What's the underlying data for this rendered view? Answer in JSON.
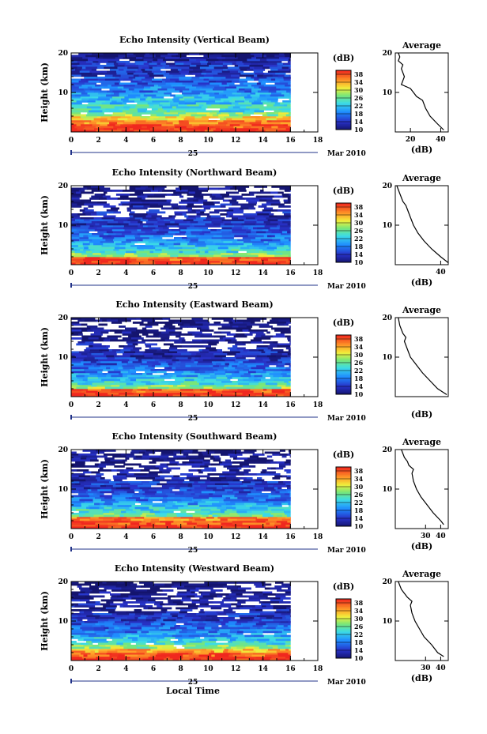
{
  "figure": {
    "shared_x_label": "Local Time",
    "date_prefix": "25",
    "date_suffix": "Mar 2010"
  },
  "chart_data": [
    {
      "type": "heatmap",
      "title": "Echo Intensity (Vertical Beam)",
      "ylabel": "Height (km)",
      "xlabel": "Local Time",
      "xlim": [
        0,
        18
      ],
      "ylim": [
        0,
        20
      ],
      "x_ticks": [
        0,
        2,
        4,
        6,
        8,
        10,
        12,
        14,
        16,
        18
      ],
      "y_ticks": [
        10,
        20
      ],
      "data_x_range": [
        0,
        16
      ],
      "colorbar": {
        "label": "(dB)",
        "ticks": [
          10,
          14,
          18,
          22,
          26,
          30,
          34,
          38
        ],
        "range": [
          10,
          40
        ]
      },
      "layers": [
        {
          "h0": 0,
          "h1": 1,
          "db": 40
        },
        {
          "h0": 1,
          "h1": 2,
          "db": 38
        },
        {
          "h0": 2,
          "h1": 3,
          "db": 36
        },
        {
          "h0": 3,
          "h1": 4,
          "db": 32
        },
        {
          "h0": 4,
          "h1": 5,
          "db": 28
        },
        {
          "h0": 5,
          "h1": 6,
          "db": 24
        },
        {
          "h0": 6,
          "h1": 7,
          "db": 24
        },
        {
          "h0": 7,
          "h1": 8,
          "db": 22
        },
        {
          "h0": 8,
          "h1": 9,
          "db": 22
        },
        {
          "h0": 9,
          "h1": 10,
          "db": 20
        },
        {
          "h0": 10,
          "h1": 12,
          "db": 18
        },
        {
          "h0": 12,
          "h1": 14,
          "db": 16
        },
        {
          "h0": 14,
          "h1": 16,
          "db": 14
        },
        {
          "h0": 16,
          "h1": 18,
          "db": 14
        },
        {
          "h0": 18,
          "h1": 19,
          "db": 12
        },
        {
          "h0": 19,
          "h1": 20,
          "db": 10
        }
      ],
      "profile": {
        "title": "Average",
        "xlabel": "(dB)",
        "x_ticks": [
          20,
          40
        ],
        "xlim": [
          10,
          45
        ],
        "y_ticks": [
          10,
          20
        ],
        "ylim": [
          0,
          20
        ],
        "points": [
          [
            42,
            0.5
          ],
          [
            38,
            2
          ],
          [
            33,
            4
          ],
          [
            30,
            6
          ],
          [
            28,
            8
          ],
          [
            24,
            9
          ],
          [
            22,
            10
          ],
          [
            20,
            11
          ],
          [
            14,
            12
          ],
          [
            16,
            14
          ],
          [
            14,
            16
          ],
          [
            15,
            17
          ],
          [
            12,
            18
          ],
          [
            13,
            19
          ],
          [
            12,
            20
          ]
        ]
      }
    },
    {
      "type": "heatmap",
      "title": "Echo Intensity (Northward Beam)",
      "ylabel": "Height (km)",
      "xlabel": "Local Time",
      "xlim": [
        0,
        18
      ],
      "ylim": [
        0,
        20
      ],
      "x_ticks": [
        0,
        2,
        4,
        6,
        8,
        10,
        12,
        14,
        16,
        18
      ],
      "y_ticks": [
        10,
        20
      ],
      "data_x_range": [
        0,
        16
      ],
      "colorbar": {
        "label": "(dB)",
        "ticks": [
          10,
          14,
          18,
          22,
          26,
          30,
          34,
          38
        ],
        "range": [
          10,
          40
        ]
      },
      "layers": [
        {
          "h0": 0,
          "h1": 1,
          "db": 40
        },
        {
          "h0": 1,
          "h1": 2,
          "db": 38
        },
        {
          "h0": 2,
          "h1": 3,
          "db": 28
        },
        {
          "h0": 3,
          "h1": 4,
          "db": 24
        },
        {
          "h0": 4,
          "h1": 5,
          "db": 22
        },
        {
          "h0": 5,
          "h1": 6,
          "db": 20
        },
        {
          "h0": 6,
          "h1": 7,
          "db": 18
        },
        {
          "h0": 7,
          "h1": 8,
          "db": 17
        },
        {
          "h0": 8,
          "h1": 9,
          "db": 16
        },
        {
          "h0": 9,
          "h1": 10,
          "db": 15
        },
        {
          "h0": 10,
          "h1": 12,
          "db": 14
        },
        {
          "h0": 12,
          "h1": 14,
          "db": 13
        },
        {
          "h0": 14,
          "h1": 16,
          "db": 12
        },
        {
          "h0": 16,
          "h1": 18,
          "db": 11
        },
        {
          "h0": 18,
          "h1": 19,
          "db": 11
        },
        {
          "h0": 19,
          "h1": 20,
          "db": 10
        }
      ],
      "profile": {
        "title": "Average",
        "xlabel": "(dB)",
        "x_ticks": [
          40
        ],
        "xlim": [
          10,
          45
        ],
        "y_ticks": [
          10,
          20
        ],
        "ylim": [
          0,
          20
        ],
        "points": [
          [
            45,
            0.5
          ],
          [
            40,
            2
          ],
          [
            34,
            4
          ],
          [
            29,
            6
          ],
          [
            25,
            8
          ],
          [
            22,
            10
          ],
          [
            20,
            12
          ],
          [
            18,
            14
          ],
          [
            17,
            15
          ],
          [
            15,
            16
          ],
          [
            13,
            18
          ],
          [
            12,
            19
          ],
          [
            11,
            20
          ]
        ]
      }
    },
    {
      "type": "heatmap",
      "title": "Echo Intensity (Eastward Beam)",
      "ylabel": "Height (km)",
      "xlabel": "Local Time",
      "xlim": [
        0,
        18
      ],
      "ylim": [
        0,
        20
      ],
      "x_ticks": [
        0,
        2,
        4,
        6,
        8,
        10,
        12,
        14,
        16,
        18
      ],
      "y_ticks": [
        10,
        20
      ],
      "data_x_range": [
        0,
        16
      ],
      "colorbar": {
        "label": "(dB)",
        "ticks": [
          10,
          14,
          18,
          22,
          26,
          30,
          34,
          38
        ],
        "range": [
          10,
          40
        ]
      },
      "layers": [
        {
          "h0": 0,
          "h1": 1,
          "db": 40
        },
        {
          "h0": 1,
          "h1": 2,
          "db": 38
        },
        {
          "h0": 2,
          "h1": 3,
          "db": 28
        },
        {
          "h0": 3,
          "h1": 4,
          "db": 24
        },
        {
          "h0": 4,
          "h1": 5,
          "db": 22
        },
        {
          "h0": 5,
          "h1": 6,
          "db": 20
        },
        {
          "h0": 6,
          "h1": 7,
          "db": 18
        },
        {
          "h0": 7,
          "h1": 8,
          "db": 17
        },
        {
          "h0": 8,
          "h1": 9,
          "db": 16
        },
        {
          "h0": 9,
          "h1": 10,
          "db": 14
        },
        {
          "h0": 10,
          "h1": 12,
          "db": 13
        },
        {
          "h0": 12,
          "h1": 14,
          "db": 12
        },
        {
          "h0": 14,
          "h1": 16,
          "db": 11
        },
        {
          "h0": 16,
          "h1": 18,
          "db": 11
        },
        {
          "h0": 18,
          "h1": 19,
          "db": 10
        },
        {
          "h0": 19,
          "h1": 20,
          "db": 10
        }
      ],
      "profile": {
        "title": "Average",
        "xlabel": "(dB)",
        "x_ticks": [],
        "xlim": [
          10,
          45
        ],
        "y_ticks": [
          10,
          20
        ],
        "ylim": [
          0,
          20
        ],
        "points": [
          [
            44,
            0.5
          ],
          [
            38,
            2
          ],
          [
            33,
            4
          ],
          [
            28,
            6
          ],
          [
            24,
            8
          ],
          [
            20,
            10
          ],
          [
            18,
            12
          ],
          [
            16,
            14
          ],
          [
            17,
            15
          ],
          [
            15,
            16
          ],
          [
            13,
            18
          ],
          [
            12,
            20
          ]
        ]
      }
    },
    {
      "type": "heatmap",
      "title": "Echo Intensity (Southward Beam)",
      "ylabel": "Height (km)",
      "xlabel": "Local Time",
      "xlim": [
        0,
        18
      ],
      "ylim": [
        0,
        20
      ],
      "x_ticks": [
        0,
        2,
        4,
        6,
        8,
        10,
        12,
        14,
        16,
        18
      ],
      "y_ticks": [
        10,
        20
      ],
      "data_x_range": [
        0,
        16
      ],
      "colorbar": {
        "label": "(dB)",
        "ticks": [
          10,
          14,
          18,
          22,
          26,
          30,
          34,
          38
        ],
        "range": [
          10,
          40
        ]
      },
      "layers": [
        {
          "h0": 0,
          "h1": 1,
          "db": 40
        },
        {
          "h0": 1,
          "h1": 2,
          "db": 38
        },
        {
          "h0": 2,
          "h1": 3,
          "db": 36
        },
        {
          "h0": 3,
          "h1": 4,
          "db": 26
        },
        {
          "h0": 4,
          "h1": 5,
          "db": 24
        },
        {
          "h0": 5,
          "h1": 6,
          "db": 22
        },
        {
          "h0": 6,
          "h1": 7,
          "db": 20
        },
        {
          "h0": 7,
          "h1": 8,
          "db": 18
        },
        {
          "h0": 8,
          "h1": 9,
          "db": 17
        },
        {
          "h0": 9,
          "h1": 10,
          "db": 16
        },
        {
          "h0": 10,
          "h1": 12,
          "db": 14
        },
        {
          "h0": 12,
          "h1": 14,
          "db": 12
        },
        {
          "h0": 14,
          "h1": 16,
          "db": 12
        },
        {
          "h0": 16,
          "h1": 18,
          "db": 11
        },
        {
          "h0": 18,
          "h1": 19,
          "db": 11
        },
        {
          "h0": 19,
          "h1": 20,
          "db": 10
        }
      ],
      "profile": {
        "title": "Average",
        "xlabel": "(dB)",
        "x_ticks": [
          30,
          40
        ],
        "xlim": [
          10,
          45
        ],
        "y_ticks": [
          10,
          20
        ],
        "ylim": [
          0,
          20
        ],
        "points": [
          [
            42,
            1
          ],
          [
            40,
            2
          ],
          [
            35,
            4
          ],
          [
            31,
            6
          ],
          [
            27,
            8
          ],
          [
            24,
            10
          ],
          [
            22,
            12
          ],
          [
            21,
            14
          ],
          [
            22,
            15
          ],
          [
            19,
            16
          ],
          [
            18,
            17
          ],
          [
            16,
            18
          ],
          [
            15,
            19
          ],
          [
            14,
            20
          ]
        ]
      }
    },
    {
      "type": "heatmap",
      "title": "Echo Intensity (Westward Beam)",
      "ylabel": "Height (km)",
      "xlabel": "Local Time",
      "xlim": [
        0,
        18
      ],
      "ylim": [
        0,
        20
      ],
      "x_ticks": [
        0,
        2,
        4,
        6,
        8,
        10,
        12,
        14,
        16,
        18
      ],
      "y_ticks": [
        10,
        20
      ],
      "data_x_range": [
        0,
        16
      ],
      "colorbar": {
        "label": "(dB)",
        "ticks": [
          10,
          14,
          18,
          22,
          26,
          30,
          34,
          38
        ],
        "range": [
          10,
          40
        ]
      },
      "layers": [
        {
          "h0": 0,
          "h1": 1,
          "db": 40
        },
        {
          "h0": 1,
          "h1": 2,
          "db": 38
        },
        {
          "h0": 2,
          "h1": 3,
          "db": 34
        },
        {
          "h0": 3,
          "h1": 4,
          "db": 28
        },
        {
          "h0": 4,
          "h1": 5,
          "db": 24
        },
        {
          "h0": 5,
          "h1": 6,
          "db": 22
        },
        {
          "h0": 6,
          "h1": 7,
          "db": 20
        },
        {
          "h0": 7,
          "h1": 8,
          "db": 18
        },
        {
          "h0": 8,
          "h1": 9,
          "db": 17
        },
        {
          "h0": 9,
          "h1": 10,
          "db": 16
        },
        {
          "h0": 10,
          "h1": 12,
          "db": 14
        },
        {
          "h0": 12,
          "h1": 14,
          "db": 12
        },
        {
          "h0": 14,
          "h1": 16,
          "db": 12
        },
        {
          "h0": 16,
          "h1": 18,
          "db": 11
        },
        {
          "h0": 18,
          "h1": 19,
          "db": 11
        },
        {
          "h0": 19,
          "h1": 20,
          "db": 10
        }
      ],
      "profile": {
        "title": "Average",
        "xlabel": "(dB)",
        "x_ticks": [
          30,
          40
        ],
        "xlim": [
          10,
          45
        ],
        "y_ticks": [
          10,
          20
        ],
        "ylim": [
          0,
          20
        ],
        "points": [
          [
            42,
            1
          ],
          [
            38,
            2
          ],
          [
            34,
            4
          ],
          [
            29,
            6
          ],
          [
            26,
            8
          ],
          [
            23,
            10
          ],
          [
            21,
            12
          ],
          [
            20,
            14
          ],
          [
            21,
            15
          ],
          [
            18,
            16
          ],
          [
            16,
            17
          ],
          [
            14,
            18
          ],
          [
            13,
            19
          ],
          [
            12,
            20
          ]
        ]
      }
    }
  ]
}
